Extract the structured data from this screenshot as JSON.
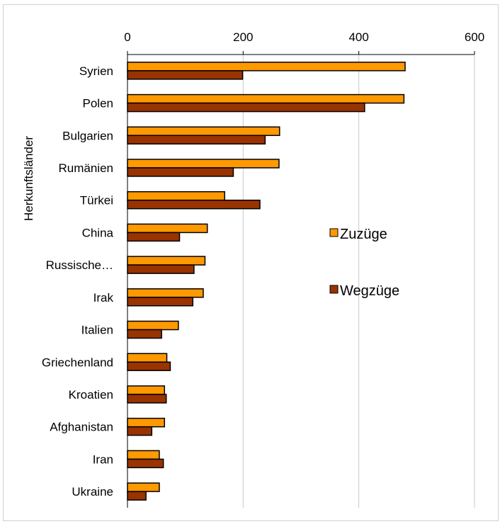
{
  "chart_data": {
    "type": "bar",
    "orientation": "horizontal",
    "ylabel": "Herkunftsländer",
    "xlim": [
      0,
      600
    ],
    "x_ticks": [
      "0",
      "200",
      "400",
      "600"
    ],
    "x_axis_position": "top",
    "grid": true,
    "legend_position": "right",
    "categories": [
      "Syrien",
      "Polen",
      "Bulgarien",
      "Rumänien",
      "Türkei",
      "China",
      "Russische…",
      "Irak",
      "Italien",
      "Griechenland",
      "Kroatien",
      "Afghanistan",
      "Iran",
      "Ukraine"
    ],
    "series": [
      {
        "name": "Zuzüge",
        "color": "#FF9900",
        "values": [
          480,
          478,
          263,
          262,
          168,
          138,
          134,
          131,
          88,
          68,
          64,
          64,
          55,
          55
        ]
      },
      {
        "name": "Wegzüge",
        "color": "#993300",
        "values": [
          199,
          410,
          238,
          183,
          229,
          90,
          115,
          113,
          59,
          74,
          67,
          42,
          62,
          32
        ]
      }
    ]
  }
}
